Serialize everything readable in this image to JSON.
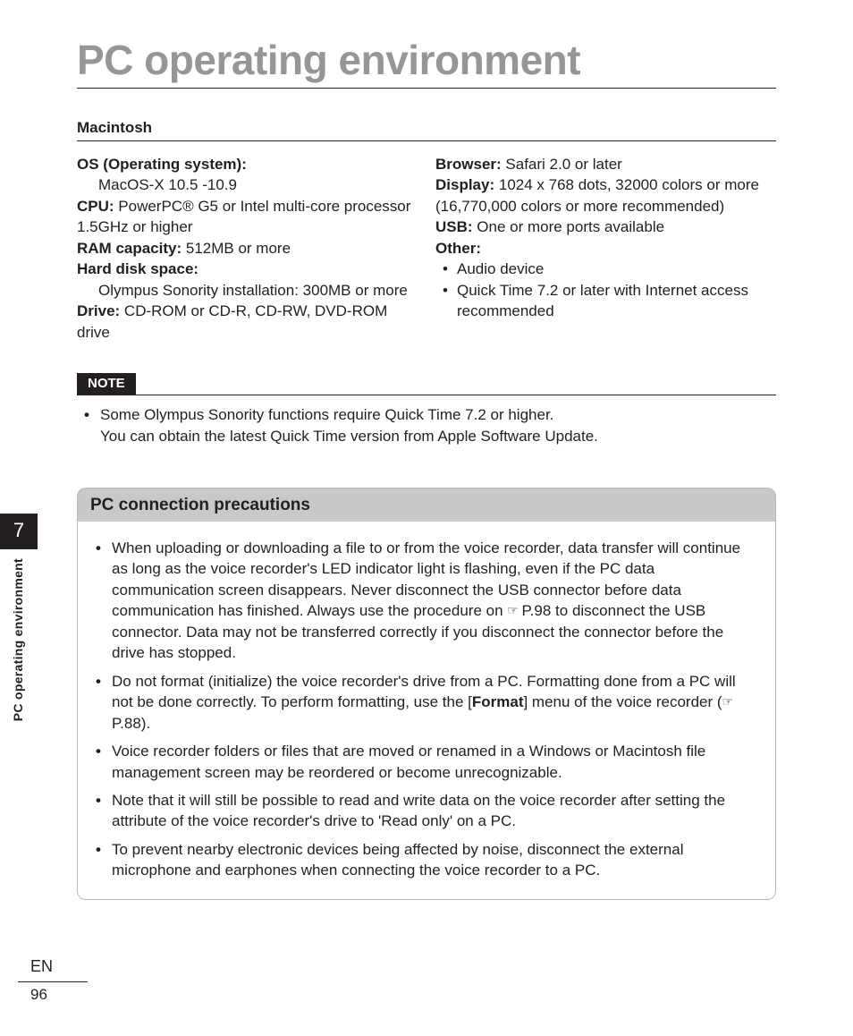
{
  "title": "PC operating environment",
  "subhead": "Macintosh",
  "specs_left": {
    "os_label": "OS (Operating system):",
    "os_value": "MacOS-X 10.5 -10.9",
    "cpu_label": "CPU:",
    "cpu_value": " PowerPC® G5 or Intel multi-core processor 1.5GHz or higher",
    "ram_label": "RAM capacity:",
    "ram_value": " 512MB or more",
    "hdd_label": "Hard disk space:",
    "hdd_value": "Olympus Sonority installation: 300MB or more",
    "drive_label": "Drive:",
    "drive_value": " CD-ROM or CD-R, CD-RW, DVD-ROM drive"
  },
  "specs_right": {
    "browser_label": "Browser:",
    "browser_value": " Safari 2.0 or later",
    "display_label": "Display:",
    "display_value": " 1024 x 768 dots, 32000 colors or more (16,770,000 colors or more recommended)",
    "usb_label": "USB:",
    "usb_value": " One or more ports available",
    "other_label": "Other:",
    "other_b1": "Audio device",
    "other_b2": "Quick Time 7.2 or later with Internet access recommended"
  },
  "note": {
    "badge": "NOTE",
    "line1": "Some Olympus Sonority functions require Quick Time 7.2 or higher.",
    "line2": "You can obtain the latest Quick Time version from Apple Software Update."
  },
  "chapter": {
    "num": "7",
    "label": "PC operating environment"
  },
  "precautions": {
    "header": "PC connection precautions",
    "i1a": "When uploading or downloading a file to or from the voice recorder, data transfer will continue as long as the voice recorder's LED indicator light is flashing, even if the PC data communication screen disappears. Never disconnect the USB connector before data communication has finished. Always use the procedure on ",
    "i1b": " P.98 to disconnect the USB connector. Data may not be transferred correctly if you disconnect the connector before the drive has stopped.",
    "i2a": "Do not format (initialize) the voice recorder's drive from a PC. Formatting done from a PC will not be done correctly. To perform formatting, use the [",
    "i2b": "Format",
    "i2c": "] menu of the voice recorder (",
    "i2d": " P.88).",
    "i3": "Voice recorder folders or files that are moved or renamed in a Windows or Macintosh file management screen may be reordered or become unrecognizable.",
    "i4": "Note that it will still be possible to read and write data on the voice recorder after setting the attribute of the voice recorder's drive to 'Read only' on a PC.",
    "i5": "To prevent nearby electronic devices being affected by noise, disconnect the external microphone and earphones when connecting the voice recorder to a PC."
  },
  "footer": {
    "lang": "EN",
    "page": "96"
  },
  "colors": {
    "title_gray": "#949698",
    "badge_bg": "#231f20",
    "prec_bg": "#c7c9cb",
    "prec_border": "#b6b8ba",
    "page_bg": "#ffffff"
  }
}
